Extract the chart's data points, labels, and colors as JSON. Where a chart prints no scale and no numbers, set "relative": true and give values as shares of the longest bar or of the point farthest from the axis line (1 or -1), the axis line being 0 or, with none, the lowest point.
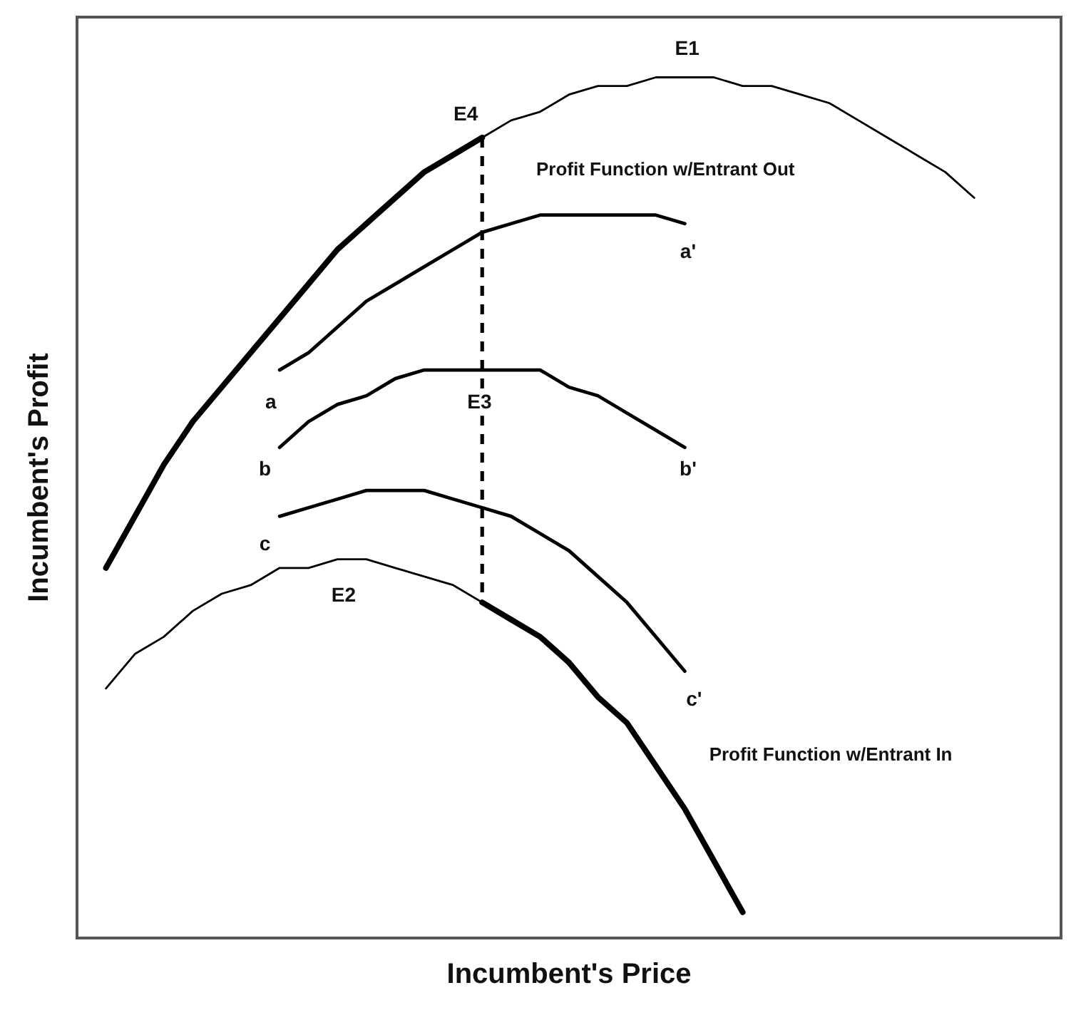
{
  "chart_data": {
    "type": "line",
    "relative": true,
    "xlabel": "Incumbent's Price",
    "ylabel": "Incumbent's Profit",
    "grid": false,
    "legend": false,
    "marker": "none",
    "categories": [
      null,
      null,
      null,
      null,
      null,
      null,
      null,
      null,
      null,
      null,
      null,
      null,
      null,
      null,
      null,
      null,
      null,
      null,
      null,
      null,
      null,
      null,
      null,
      null,
      null,
      null,
      null,
      null,
      null,
      null,
      null,
      null,
      null,
      null,
      null
    ],
    "series": [
      {
        "color": "#000000",
        "values": [
          null,
          0.43,
          0.49,
          0.55,
          0.6,
          0.64,
          0.68,
          0.72,
          0.76,
          0.8,
          0.83,
          0.86,
          0.89,
          0.91,
          0.93,
          null,
          null,
          null,
          null,
          null,
          null,
          null,
          null,
          null,
          null,
          null,
          null,
          null,
          null,
          null,
          null,
          null,
          null,
          null,
          null
        ]
      },
      {
        "color": "#000000",
        "values": [
          null,
          null,
          null,
          null,
          null,
          null,
          null,
          null,
          null,
          null,
          null,
          null,
          null,
          null,
          0.93,
          0.95,
          0.96,
          0.98,
          0.99,
          0.99,
          1.0,
          1.0,
          1.0,
          0.99,
          0.99,
          0.98,
          0.97,
          0.95,
          0.93,
          0.91,
          0.89,
          0.86,
          null,
          null,
          null
        ]
      },
      {
        "color": "#000000",
        "values": [
          null,
          0.29,
          0.33,
          0.35,
          0.38,
          0.4,
          0.41,
          0.43,
          0.43,
          0.44,
          0.44,
          0.43,
          0.42,
          0.41,
          0.39,
          null,
          null,
          null,
          null,
          null,
          null,
          null,
          null,
          null,
          null,
          null,
          null,
          null,
          null,
          null,
          null,
          null,
          null,
          null,
          null
        ]
      },
      {
        "color": "#000000",
        "values": [
          null,
          null,
          null,
          null,
          null,
          null,
          null,
          null,
          null,
          null,
          null,
          null,
          null,
          null,
          0.39,
          0.37,
          0.35,
          0.32,
          0.28,
          0.25,
          0.2,
          0.15,
          0.09,
          0.03,
          null,
          null,
          null,
          null,
          null,
          null,
          null,
          null,
          null,
          null,
          null
        ]
      },
      {
        "color": "#000000",
        "values": [
          null,
          null,
          null,
          null,
          null,
          null,
          null,
          0.66,
          0.68,
          0.71,
          0.74,
          0.76,
          0.78,
          0.8,
          0.82,
          0.83,
          0.84,
          0.84,
          0.84,
          0.84,
          0.84,
          0.83,
          null,
          null,
          null,
          null,
          null,
          null,
          null,
          null,
          null,
          null,
          null,
          null,
          null
        ]
      },
      {
        "color": "#000000",
        "values": [
          null,
          null,
          null,
          null,
          null,
          null,
          null,
          0.57,
          0.6,
          0.62,
          0.63,
          0.65,
          0.66,
          0.66,
          0.66,
          0.66,
          0.66,
          0.64,
          0.63,
          0.61,
          0.59,
          0.57,
          null,
          null,
          null,
          null,
          null,
          null,
          null,
          null,
          null,
          null,
          null,
          null,
          null
        ]
      },
      {
        "color": "#000000",
        "values": [
          null,
          null,
          null,
          null,
          null,
          null,
          null,
          0.49,
          0.5,
          0.51,
          0.52,
          0.52,
          0.52,
          0.51,
          0.5,
          0.49,
          0.47,
          0.45,
          0.42,
          0.39,
          0.35,
          0.31,
          null,
          null,
          null,
          null,
          null,
          null,
          null,
          null,
          null,
          null,
          null,
          null,
          null
        ]
      }
    ],
    "annotations": [
      "E1",
      "E4",
      "Profit Function w/Entrant Out",
      "a'",
      "a",
      "E3",
      "b",
      "b'",
      "c",
      "E2",
      "c'",
      "Profit Function w/Entrant In"
    ]
  }
}
